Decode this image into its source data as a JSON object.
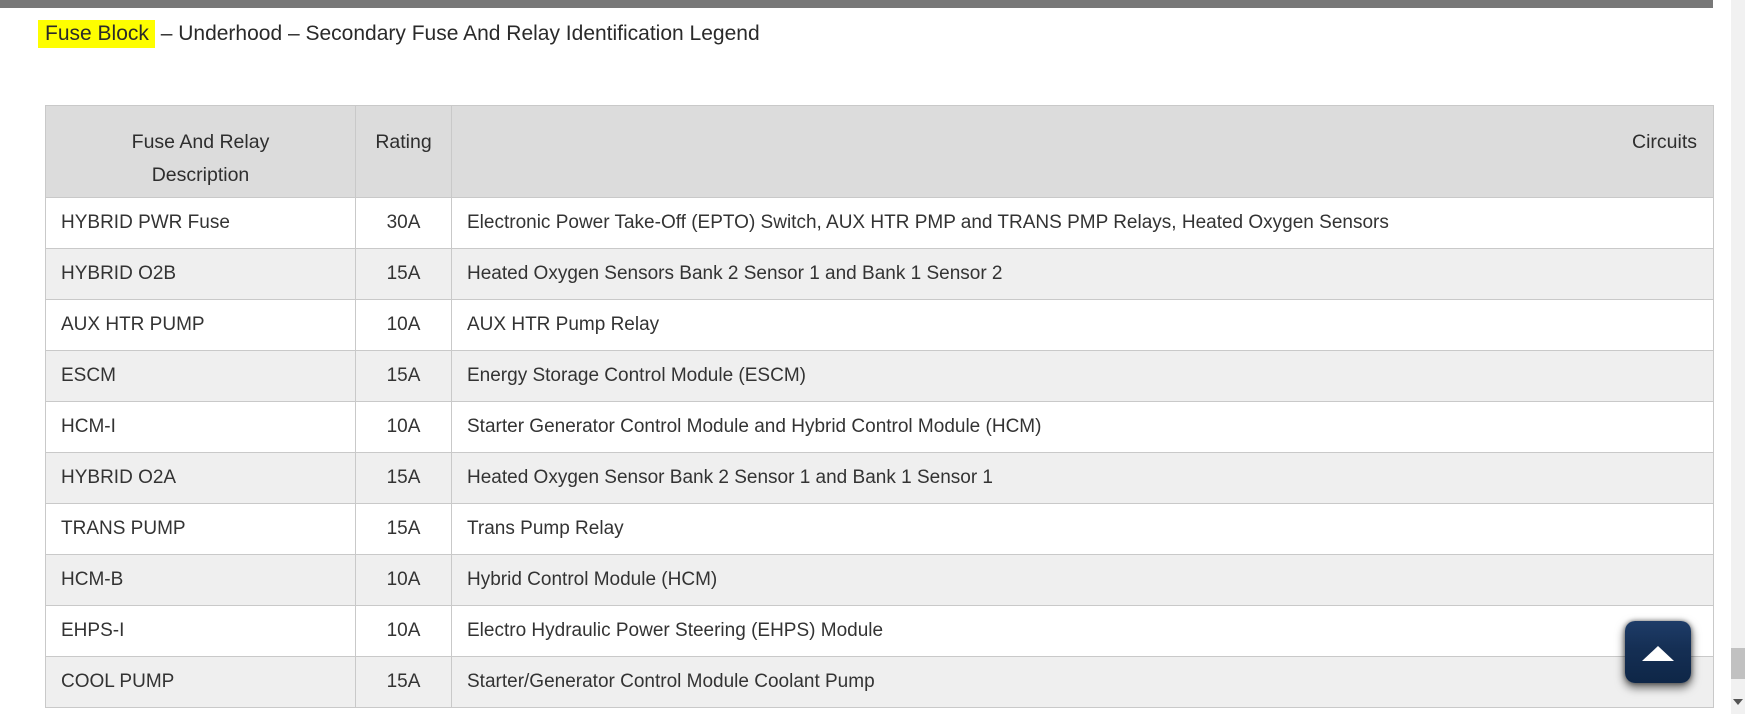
{
  "title": {
    "highlight": "Fuse Block",
    "rest": " – Underhood – Secondary Fuse And Relay Identification Legend"
  },
  "table": {
    "header": {
      "description_line1": "Fuse And Relay",
      "description_line2": "Description",
      "rating": "Rating",
      "circuits": "Circuits"
    },
    "rows": [
      {
        "description": "HYBRID PWR Fuse",
        "rating": "30A",
        "circuits": "Electronic Power Take-Off (EPTO) Switch, AUX HTR PMP and TRANS PMP Relays, Heated Oxygen Sensors"
      },
      {
        "description": "HYBRID O2B",
        "rating": "15A",
        "circuits": "Heated Oxygen Sensors Bank 2 Sensor 1 and Bank 1 Sensor 2"
      },
      {
        "description": "AUX HTR PUMP",
        "rating": "10A",
        "circuits": "AUX HTR Pump Relay"
      },
      {
        "description": "ESCM",
        "rating": "15A",
        "circuits": "Energy Storage Control Module (ESCM)"
      },
      {
        "description": "HCM-I",
        "rating": "10A",
        "circuits": "Starter Generator Control Module and Hybrid Control Module (HCM)"
      },
      {
        "description": "HYBRID O2A",
        "rating": "15A",
        "circuits": "Heated Oxygen Sensor Bank 2 Sensor 1 and Bank 1 Sensor 1"
      },
      {
        "description": "TRANS PUMP",
        "rating": "15A",
        "circuits": "Trans Pump Relay"
      },
      {
        "description": "HCM-B",
        "rating": "10A",
        "circuits": "Hybrid Control Module (HCM)"
      },
      {
        "description": "EHPS-I",
        "rating": "10A",
        "circuits": "Electro Hydraulic Power Steering (EHPS) Module"
      },
      {
        "description": "COOL PUMP",
        "rating": "15A",
        "circuits": "Starter/Generator Control Module Coolant Pump"
      }
    ]
  },
  "scroll_to_top_button": {
    "icon": "chevron-up-icon"
  },
  "scrollbar": {
    "down_icon": "chevron-down-icon"
  },
  "colors": {
    "highlight_yellow": "#fefe00",
    "top_bar_gray": "#787878",
    "header_bg": "#dcdcdc",
    "row_alt_bg": "#efefef",
    "table_border": "#c9c9c9",
    "text": "#333333",
    "button_navy": "#14315a",
    "scrollbar_track": "#f1f1f1",
    "scrollbar_thumb": "#c1c1c1"
  }
}
